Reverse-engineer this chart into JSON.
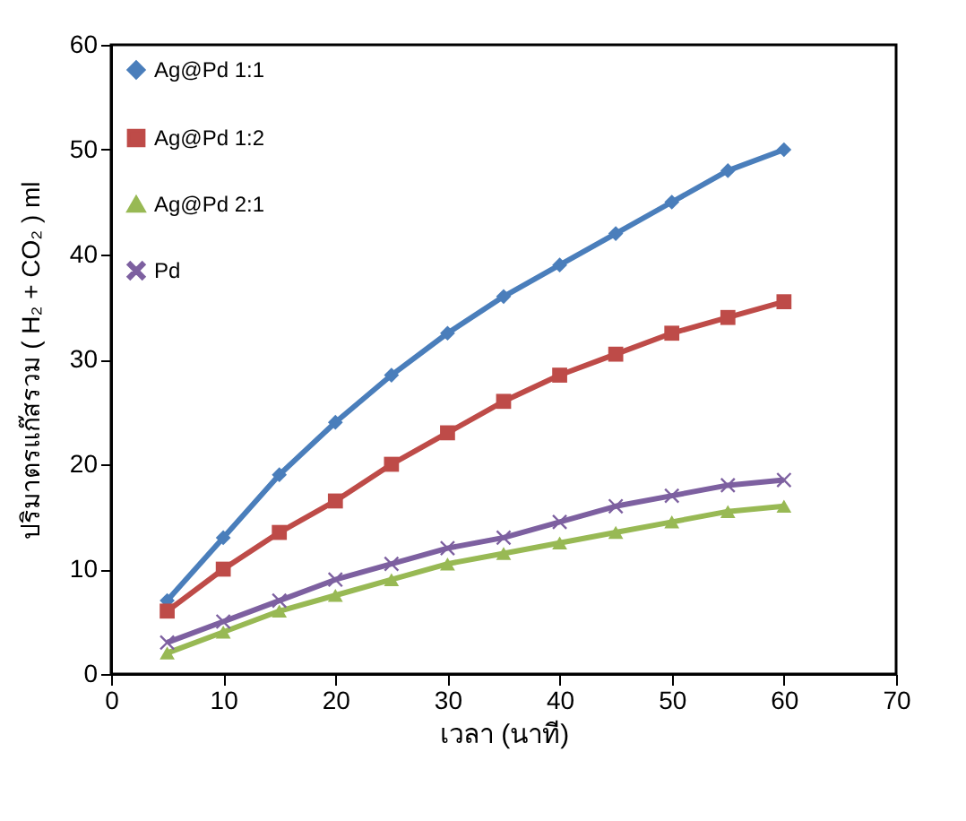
{
  "chart_data": {
    "type": "line",
    "xlabel": "เวลา (นาที)",
    "ylabel": "ปริมาตรแก๊สรวม  ( H₂ + CO₂ ) ml",
    "x": [
      5,
      10,
      15,
      20,
      25,
      30,
      35,
      40,
      45,
      50,
      55,
      60
    ],
    "series": [
      {
        "name": "Ag@Pd  1:1",
        "color": "#4a7ebb",
        "marker": "diamond",
        "values": [
          7,
          13,
          19,
          24,
          28.5,
          32.5,
          36,
          39,
          42,
          45,
          48,
          50
        ]
      },
      {
        "name": "Ag@Pd 1:2",
        "color": "#be4b48",
        "marker": "square",
        "values": [
          6,
          10,
          13.5,
          16.5,
          20,
          23,
          26,
          28.5,
          30.5,
          32.5,
          34,
          35.5
        ]
      },
      {
        "name": "Ag@Pd 2:1",
        "color": "#98b954",
        "marker": "triangle",
        "values": [
          2,
          4,
          6,
          7.5,
          9,
          10.5,
          11.5,
          12.5,
          13.5,
          14.5,
          15.5,
          16
        ]
      },
      {
        "name": "Pd",
        "color": "#7d60a0",
        "marker": "cross",
        "values": [
          3,
          5,
          7,
          9,
          10.5,
          12,
          13,
          14.5,
          16,
          17,
          18,
          18.5
        ]
      }
    ],
    "xlim": [
      0,
      70
    ],
    "xticks": [
      0,
      10,
      20,
      30,
      40,
      50,
      60,
      70
    ],
    "ylim": [
      0,
      60
    ],
    "yticks": [
      0,
      10,
      20,
      30,
      40,
      50,
      60
    ],
    "grid": false,
    "legend": "top left",
    "line_style": "solid"
  }
}
